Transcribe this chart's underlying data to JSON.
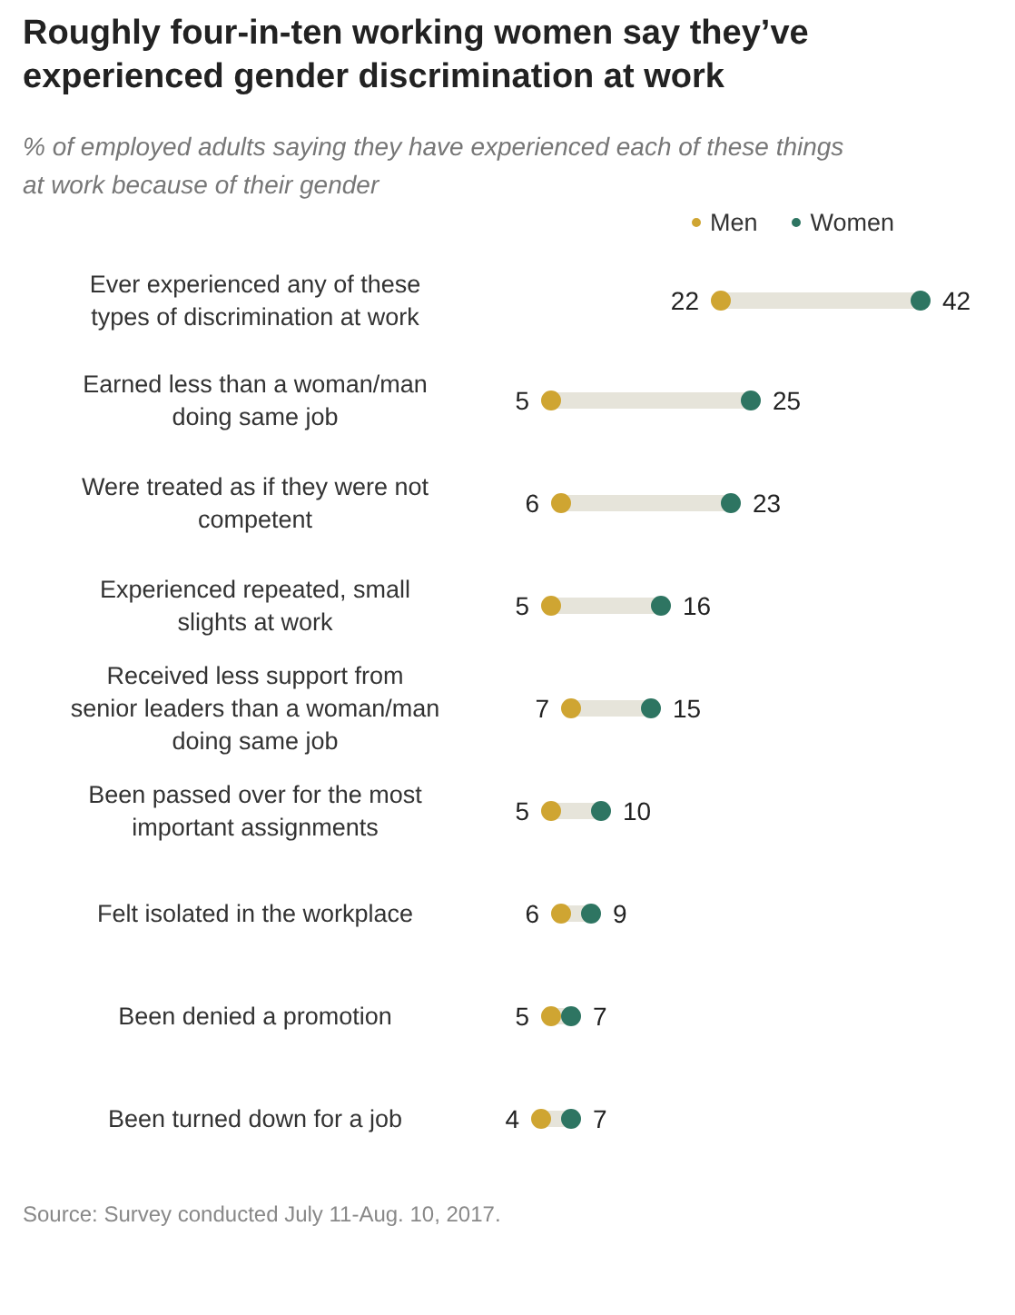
{
  "chart_data": {
    "type": "scatter",
    "orientation": "horizontal",
    "title": "Roughly four-in-ten working women say they’ve experienced gender discrimination at work",
    "subtitle": "% of employed adults saying they have experienced each of these things at work because of their gender",
    "categories": [
      "Ever experienced any of these types of discrimination at work",
      "Earned less than a woman/man doing same job",
      "Were treated as if they were not competent",
      "Experienced repeated, small slights at work",
      "Received less support from senior leaders than a woman/man doing same job",
      "Been passed over for the most important assignments",
      "Felt isolated in the workplace",
      "Been denied a promotion",
      "Been turned down for a job"
    ],
    "series": [
      {
        "name": "Men",
        "color": "#cfa532",
        "values": [
          22,
          5,
          6,
          5,
          7,
          5,
          6,
          5,
          4
        ]
      },
      {
        "name": "Women",
        "color": "#2e7562",
        "values": [
          42,
          25,
          23,
          16,
          15,
          10,
          9,
          7,
          7
        ]
      }
    ],
    "data_labels": true,
    "legend": "top right",
    "marker": "circle",
    "annotations": [
      "Source: Survey conducted July 11-Aug. 10, 2017."
    ]
  }
}
